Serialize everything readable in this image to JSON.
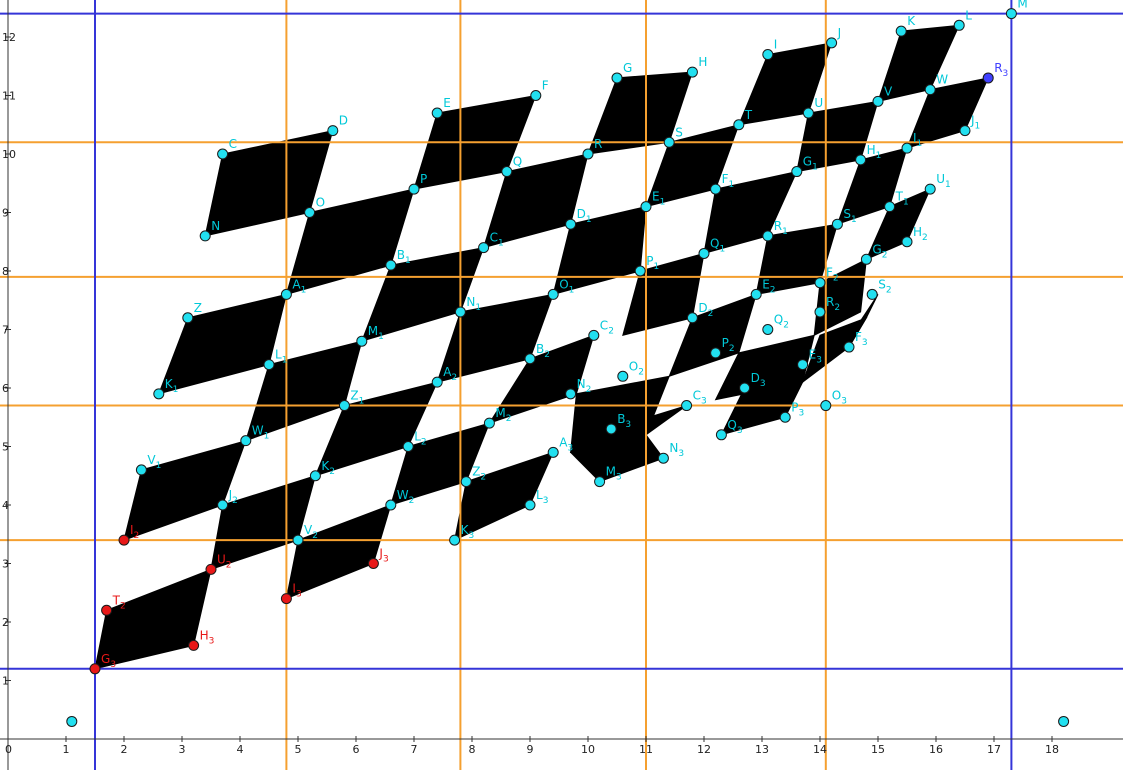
{
  "axes": {
    "x_ticks": [
      "0",
      "1",
      "2",
      "3",
      "4",
      "5",
      "6",
      "7",
      "8",
      "9",
      "10",
      "11",
      "12",
      "13",
      "14",
      "15",
      "16",
      "17",
      "18"
    ],
    "y_ticks": [
      "1",
      "2",
      "3",
      "4",
      "5",
      "6",
      "7",
      "8",
      "9",
      "10",
      "11",
      "12"
    ]
  },
  "colors": {
    "cell": "#000000",
    "point": "#22e0f0",
    "point_stroke": "#0a5a70",
    "label": "#00c8d8",
    "red_point": "#e81818",
    "blue_point": "#4040ff",
    "blue_line": "#3535d8",
    "orange_line": "#f5a030",
    "axis": "#333333"
  },
  "guides": {
    "vertical_blue_x": [
      1.5,
      17.3
    ],
    "horizontal_blue_y": [
      1.2,
      12.4
    ],
    "vertical_orange_x": [
      4.8,
      7.8,
      11.0,
      14.1
    ],
    "horizontal_orange_y": [
      3.4,
      5.7,
      7.9,
      10.2
    ]
  },
  "cells": [
    [
      [
        3.4,
        8.6
      ],
      [
        5.2,
        9.0
      ],
      [
        5.6,
        10.4
      ],
      [
        3.7,
        10.0
      ]
    ],
    [
      [
        7.0,
        9.4
      ],
      [
        8.6,
        9.7
      ],
      [
        9.1,
        11.0
      ],
      [
        7.4,
        10.7
      ]
    ],
    [
      [
        10.0,
        10.0
      ],
      [
        11.4,
        10.2
      ],
      [
        11.8,
        11.4
      ],
      [
        10.5,
        11.3
      ]
    ],
    [
      [
        12.6,
        10.5
      ],
      [
        13.8,
        10.7
      ],
      [
        14.2,
        11.9
      ],
      [
        13.1,
        11.7
      ]
    ],
    [
      [
        15.0,
        10.9
      ],
      [
        15.9,
        11.1
      ],
      [
        16.4,
        12.2
      ],
      [
        15.4,
        12.1
      ]
    ],
    [
      [
        5.2,
        9.0
      ],
      [
        7.0,
        9.4
      ],
      [
        6.6,
        8.1
      ],
      [
        4.8,
        7.6
      ]
    ],
    [
      [
        8.6,
        9.7
      ],
      [
        10.0,
        10.0
      ],
      [
        9.7,
        8.8
      ],
      [
        8.2,
        8.4
      ]
    ],
    [
      [
        11.4,
        10.2
      ],
      [
        12.6,
        10.5
      ],
      [
        12.2,
        9.4
      ],
      [
        11.0,
        9.1
      ]
    ],
    [
      [
        13.8,
        10.7
      ],
      [
        15.0,
        10.9
      ],
      [
        14.7,
        9.9
      ],
      [
        13.6,
        9.7
      ]
    ],
    [
      [
        15.9,
        11.1
      ],
      [
        16.9,
        11.3
      ],
      [
        16.5,
        10.4
      ],
      [
        15.5,
        10.1
      ]
    ],
    [
      [
        2.6,
        5.9
      ],
      [
        4.5,
        6.4
      ],
      [
        4.8,
        7.6
      ],
      [
        3.1,
        7.2
      ]
    ],
    [
      [
        6.1,
        6.8
      ],
      [
        7.8,
        7.3
      ],
      [
        8.2,
        8.4
      ],
      [
        6.6,
        8.1
      ]
    ],
    [
      [
        9.4,
        7.6
      ],
      [
        10.9,
        8.0
      ],
      [
        11.0,
        9.1
      ],
      [
        9.7,
        8.8
      ]
    ],
    [
      [
        12.0,
        8.3
      ],
      [
        13.1,
        8.6
      ],
      [
        13.6,
        9.7
      ],
      [
        12.2,
        9.4
      ]
    ],
    [
      [
        14.3,
        8.8
      ],
      [
        15.2,
        9.1
      ],
      [
        15.5,
        10.1
      ],
      [
        14.7,
        9.9
      ]
    ],
    [
      [
        4.5,
        6.4
      ],
      [
        6.1,
        6.8
      ],
      [
        5.8,
        5.7
      ],
      [
        4.1,
        5.1
      ]
    ],
    [
      [
        7.8,
        7.3
      ],
      [
        9.4,
        7.6
      ],
      [
        9.0,
        6.5
      ],
      [
        7.4,
        6.1
      ]
    ],
    [
      [
        10.9,
        8.0
      ],
      [
        12.0,
        8.3
      ],
      [
        11.8,
        7.2
      ],
      [
        10.6,
        6.9
      ]
    ],
    [
      [
        13.1,
        8.6
      ],
      [
        14.3,
        8.8
      ],
      [
        14.0,
        7.8
      ],
      [
        12.9,
        7.6
      ]
    ],
    [
      [
        15.2,
        9.1
      ],
      [
        15.9,
        9.4
      ],
      [
        15.5,
        8.5
      ],
      [
        14.8,
        8.2
      ]
    ],
    [
      [
        2.0,
        3.4
      ],
      [
        3.7,
        4.0
      ],
      [
        4.1,
        5.1
      ],
      [
        2.3,
        4.6
      ]
    ],
    [
      [
        5.3,
        4.5
      ],
      [
        6.9,
        5.0
      ],
      [
        7.4,
        6.1
      ],
      [
        5.8,
        5.7
      ]
    ],
    [
      [
        8.3,
        5.4
      ],
      [
        9.8,
        5.9
      ],
      [
        10.1,
        6.9
      ],
      [
        9.0,
        6.5
      ]
    ],
    [
      [
        11.4,
        6.2
      ],
      [
        12.6,
        6.6
      ],
      [
        12.9,
        7.6
      ],
      [
        11.8,
        7.2
      ]
    ],
    [
      [
        13.9,
        6.9
      ],
      [
        14.7,
        7.3
      ],
      [
        14.8,
        8.2
      ],
      [
        14.0,
        7.8
      ]
    ],
    [
      [
        3.7,
        4.0
      ],
      [
        5.3,
        4.5
      ],
      [
        5.0,
        3.4
      ],
      [
        3.5,
        2.9
      ]
    ],
    [
      [
        6.9,
        5.0
      ],
      [
        8.3,
        5.4
      ],
      [
        7.9,
        4.4
      ],
      [
        6.6,
        4.0
      ]
    ],
    [
      [
        9.8,
        5.9
      ],
      [
        11.4,
        6.2
      ],
      [
        11.0,
        5.2
      ],
      [
        9.7,
        4.9
      ]
    ],
    [
      [
        12.6,
        6.6
      ],
      [
        13.9,
        6.9
      ],
      [
        13.7,
        6.1
      ],
      [
        12.2,
        5.8
      ]
    ],
    [
      [
        14.6,
        7.0
      ],
      [
        15.0,
        7.6
      ],
      [
        14.8,
        7.2
      ],
      [
        14.5,
        6.7
      ]
    ],
    [
      [
        1.5,
        1.2
      ],
      [
        3.2,
        1.6
      ],
      [
        3.5,
        2.9
      ],
      [
        1.7,
        2.2
      ]
    ],
    [
      [
        4.8,
        2.4
      ],
      [
        6.3,
        3.0
      ],
      [
        6.6,
        4.0
      ],
      [
        5.0,
        3.4
      ]
    ],
    [
      [
        7.7,
        3.4
      ],
      [
        9.0,
        4.0
      ],
      [
        9.4,
        4.9
      ],
      [
        7.9,
        4.4
      ]
    ],
    [
      [
        10.2,
        4.4
      ],
      [
        11.3,
        4.8
      ],
      [
        11.0,
        5.2
      ],
      [
        11.7,
        5.7
      ],
      [
        10.4,
        5.3
      ],
      [
        9.7,
        4.9
      ]
    ],
    [
      [
        12.3,
        5.2
      ],
      [
        13.4,
        5.5
      ],
      [
        13.7,
        6.1
      ],
      [
        12.7,
        6.0
      ]
    ],
    [
      [
        13.7,
        6.1
      ],
      [
        14.5,
        6.7
      ],
      [
        14.8,
        7.2
      ],
      [
        14.0,
        6.9
      ]
    ]
  ],
  "points": [
    {
      "l": "C",
      "x": 3.7,
      "y": 10.0,
      "c": "cyan"
    },
    {
      "l": "D",
      "x": 5.6,
      "y": 10.4,
      "c": "cyan"
    },
    {
      "l": "E",
      "x": 7.4,
      "y": 10.7,
      "c": "cyan"
    },
    {
      "l": "F",
      "x": 9.1,
      "y": 11.0,
      "c": "cyan"
    },
    {
      "l": "G",
      "x": 10.5,
      "y": 11.3,
      "c": "cyan"
    },
    {
      "l": "H",
      "x": 11.8,
      "y": 11.4,
      "c": "cyan"
    },
    {
      "l": "I",
      "x": 13.1,
      "y": 11.7,
      "c": "cyan"
    },
    {
      "l": "J",
      "x": 14.2,
      "y": 11.9,
      "c": "cyan"
    },
    {
      "l": "K",
      "x": 15.4,
      "y": 12.1,
      "c": "cyan"
    },
    {
      "l": "L",
      "x": 16.4,
      "y": 12.2,
      "c": "cyan"
    },
    {
      "l": "M",
      "x": 17.3,
      "y": 12.4,
      "c": "cyan"
    },
    {
      "l": "N",
      "x": 3.4,
      "y": 8.6,
      "c": "cyan"
    },
    {
      "l": "O",
      "x": 5.2,
      "y": 9.0,
      "c": "cyan"
    },
    {
      "l": "P",
      "x": 7.0,
      "y": 9.4,
      "c": "cyan"
    },
    {
      "l": "Q",
      "x": 8.6,
      "y": 9.7,
      "c": "cyan"
    },
    {
      "l": "R",
      "x": 10.0,
      "y": 10.0,
      "c": "cyan"
    },
    {
      "l": "S",
      "x": 11.4,
      "y": 10.2,
      "c": "cyan"
    },
    {
      "l": "T",
      "x": 12.6,
      "y": 10.5,
      "c": "cyan"
    },
    {
      "l": "U",
      "x": 13.8,
      "y": 10.7,
      "c": "cyan"
    },
    {
      "l": "V",
      "x": 15.0,
      "y": 10.9,
      "c": "cyan"
    },
    {
      "l": "W",
      "x": 15.9,
      "y": 11.1,
      "c": "cyan"
    },
    {
      "l": "R3",
      "x": 16.9,
      "y": 11.3,
      "c": "blue"
    },
    {
      "l": "Z",
      "x": 3.1,
      "y": 7.2,
      "c": "cyan"
    },
    {
      "l": "A1",
      "x": 4.8,
      "y": 7.6,
      "c": "cyan"
    },
    {
      "l": "B1",
      "x": 6.6,
      "y": 8.1,
      "c": "cyan"
    },
    {
      "l": "C1",
      "x": 8.2,
      "y": 8.4,
      "c": "cyan"
    },
    {
      "l": "D1",
      "x": 9.7,
      "y": 8.8,
      "c": "cyan"
    },
    {
      "l": "E1",
      "x": 11.0,
      "y": 9.1,
      "c": "cyan"
    },
    {
      "l": "F1",
      "x": 12.2,
      "y": 9.4,
      "c": "cyan"
    },
    {
      "l": "G1",
      "x": 13.6,
      "y": 9.7,
      "c": "cyan"
    },
    {
      "l": "H1",
      "x": 14.7,
      "y": 9.9,
      "c": "cyan"
    },
    {
      "l": "I1",
      "x": 15.5,
      "y": 10.1,
      "c": "cyan"
    },
    {
      "l": "J1",
      "x": 16.5,
      "y": 10.4,
      "c": "cyan"
    },
    {
      "l": "K1",
      "x": 2.6,
      "y": 5.9,
      "c": "cyan"
    },
    {
      "l": "L1",
      "x": 4.5,
      "y": 6.4,
      "c": "cyan"
    },
    {
      "l": "M1",
      "x": 6.1,
      "y": 6.8,
      "c": "cyan"
    },
    {
      "l": "N1",
      "x": 7.8,
      "y": 7.3,
      "c": "cyan"
    },
    {
      "l": "O1",
      "x": 9.4,
      "y": 7.6,
      "c": "cyan"
    },
    {
      "l": "P1",
      "x": 10.9,
      "y": 8.0,
      "c": "cyan"
    },
    {
      "l": "Q1",
      "x": 12.0,
      "y": 8.3,
      "c": "cyan"
    },
    {
      "l": "R1",
      "x": 13.1,
      "y": 8.6,
      "c": "cyan"
    },
    {
      "l": "S1",
      "x": 14.3,
      "y": 8.8,
      "c": "cyan"
    },
    {
      "l": "T1",
      "x": 15.2,
      "y": 9.1,
      "c": "cyan"
    },
    {
      "l": "U1",
      "x": 15.9,
      "y": 9.4,
      "c": "cyan"
    },
    {
      "l": "V1",
      "x": 2.3,
      "y": 4.6,
      "c": "cyan"
    },
    {
      "l": "W1",
      "x": 4.1,
      "y": 5.1,
      "c": "cyan"
    },
    {
      "l": "Z1",
      "x": 5.8,
      "y": 5.7,
      "c": "cyan"
    },
    {
      "l": "A2",
      "x": 7.4,
      "y": 6.1,
      "c": "cyan"
    },
    {
      "l": "B2",
      "x": 9.0,
      "y": 6.5,
      "c": "cyan"
    },
    {
      "l": "C2",
      "x": 10.1,
      "y": 6.9,
      "c": "cyan"
    },
    {
      "l": "D2",
      "x": 11.8,
      "y": 7.2,
      "c": "cyan"
    },
    {
      "l": "E2",
      "x": 12.9,
      "y": 7.6,
      "c": "cyan"
    },
    {
      "l": "F2",
      "x": 14.0,
      "y": 7.8,
      "c": "cyan"
    },
    {
      "l": "G2",
      "x": 14.8,
      "y": 8.2,
      "c": "cyan"
    },
    {
      "l": "H2",
      "x": 15.5,
      "y": 8.5,
      "c": "cyan"
    },
    {
      "l": "I2",
      "x": 2.0,
      "y": 3.4,
      "c": "red"
    },
    {
      "l": "J2",
      "x": 3.7,
      "y": 4.0,
      "c": "cyan"
    },
    {
      "l": "K2",
      "x": 5.3,
      "y": 4.5,
      "c": "cyan"
    },
    {
      "l": "L2",
      "x": 6.9,
      "y": 5.0,
      "c": "cyan"
    },
    {
      "l": "M2",
      "x": 8.3,
      "y": 5.4,
      "c": "cyan"
    },
    {
      "l": "N2",
      "x": 9.7,
      "y": 5.9,
      "c": "cyan"
    },
    {
      "l": "O2",
      "x": 10.6,
      "y": 6.2,
      "c": "cyan"
    },
    {
      "l": "P2",
      "x": 12.2,
      "y": 6.6,
      "c": "cyan"
    },
    {
      "l": "Q2",
      "x": 13.1,
      "y": 7.0,
      "c": "cyan"
    },
    {
      "l": "R2",
      "x": 14.0,
      "y": 7.3,
      "c": "cyan"
    },
    {
      "l": "S2",
      "x": 14.9,
      "y": 7.6,
      "c": "cyan"
    },
    {
      "l": "T2",
      "x": 1.7,
      "y": 2.2,
      "c": "red"
    },
    {
      "l": "U2",
      "x": 3.5,
      "y": 2.9,
      "c": "red"
    },
    {
      "l": "V2",
      "x": 5.0,
      "y": 3.4,
      "c": "cyan"
    },
    {
      "l": "W2",
      "x": 6.6,
      "y": 4.0,
      "c": "cyan"
    },
    {
      "l": "Z2",
      "x": 7.9,
      "y": 4.4,
      "c": "cyan"
    },
    {
      "l": "A3",
      "x": 9.4,
      "y": 4.9,
      "c": "cyan"
    },
    {
      "l": "B3",
      "x": 10.4,
      "y": 5.3,
      "c": "cyan"
    },
    {
      "l": "C3",
      "x": 11.7,
      "y": 5.7,
      "c": "cyan"
    },
    {
      "l": "D3",
      "x": 12.7,
      "y": 6.0,
      "c": "cyan"
    },
    {
      "l": "E3",
      "x": 13.7,
      "y": 6.4,
      "c": "cyan"
    },
    {
      "l": "F3",
      "x": 14.5,
      "y": 6.7,
      "c": "cyan"
    },
    {
      "l": "G3",
      "x": 1.5,
      "y": 1.2,
      "c": "red"
    },
    {
      "l": "H3",
      "x": 3.2,
      "y": 1.6,
      "c": "red"
    },
    {
      "l": "I3",
      "x": 4.8,
      "y": 2.4,
      "c": "red"
    },
    {
      "l": "J3",
      "x": 6.3,
      "y": 3.0,
      "c": "red"
    },
    {
      "l": "K3",
      "x": 7.7,
      "y": 3.4,
      "c": "cyan"
    },
    {
      "l": "L3",
      "x": 9.0,
      "y": 4.0,
      "c": "cyan"
    },
    {
      "l": "M3",
      "x": 10.2,
      "y": 4.4,
      "c": "cyan"
    },
    {
      "l": "N3",
      "x": 11.3,
      "y": 4.8,
      "c": "cyan"
    },
    {
      "l": "O3",
      "x": 14.1,
      "y": 5.7,
      "c": "cyan"
    },
    {
      "l": "P3",
      "x": 13.4,
      "y": 5.5,
      "c": "cyan"
    },
    {
      "l": "Q3",
      "x": 12.3,
      "y": 5.2,
      "c": "cyan"
    },
    {
      "l": "",
      "x": 1.1,
      "y": 0.3,
      "c": "cyan"
    },
    {
      "l": "",
      "x": 18.2,
      "y": 0.3,
      "c": "cyan"
    }
  ]
}
